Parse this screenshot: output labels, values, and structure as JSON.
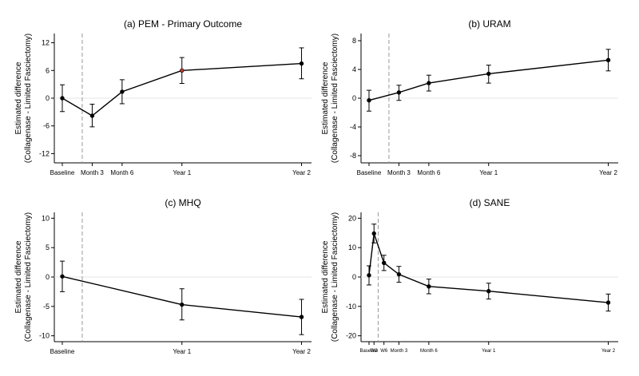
{
  "chart_data": [
    {
      "type": "line",
      "title": "(a) PEM - Primary Outcome",
      "ylabel_line1": "Estimated difference",
      "ylabel_line2": "(Collagenase - Limited Fasciectomy)",
      "ylim": [
        -14,
        14
      ],
      "yticks": [
        12,
        6,
        0,
        -6,
        -12
      ],
      "ytick_labels": [
        "12",
        "6",
        "0",
        "-6",
        "-12"
      ],
      "xlim": [
        -0.8,
        25
      ],
      "vline_x": 2,
      "grid": "zero-line only",
      "series": [
        {
          "x": [
            0,
            3,
            6,
            12,
            24
          ],
          "labels": [
            "Baseline",
            "Month 3",
            "Month 6",
            "Year 1",
            "Year 2"
          ],
          "y": [
            0,
            -3.8,
            1.4,
            6.0,
            7.5
          ],
          "lower": [
            -2.9,
            -6.2,
            -1.2,
            3.2,
            4.2
          ],
          "upper": [
            2.9,
            -1.3,
            4.0,
            8.8,
            10.9
          ]
        }
      ],
      "highlight_point_index": 3,
      "highlight_color": "#c0392b"
    },
    {
      "type": "line",
      "title": "(b) URAM",
      "ylabel_line1": "Estimated difference",
      "ylabel_line2": "(Collagenase - Limited Fasciectomy)",
      "ylim": [
        -9,
        9
      ],
      "yticks": [
        8,
        4,
        0,
        -4,
        -8
      ],
      "ytick_labels": [
        "8",
        "4",
        "0",
        "-4",
        "-8"
      ],
      "xlim": [
        -0.8,
        25
      ],
      "vline_x": 2,
      "grid": "zero-line only",
      "series": [
        {
          "x": [
            0,
            3,
            6,
            12,
            24
          ],
          "labels": [
            "Baseline",
            "Month 3",
            "Month 6",
            "Year 1",
            "Year 2"
          ],
          "y": [
            -0.3,
            0.8,
            2.1,
            3.4,
            5.3
          ],
          "lower": [
            -1.8,
            -0.3,
            1.0,
            2.1,
            3.8
          ],
          "upper": [
            1.1,
            1.8,
            3.2,
            4.6,
            6.8
          ]
        }
      ]
    },
    {
      "type": "line",
      "title": "(c) MHQ",
      "ylabel_line1": "Estimated difference",
      "ylabel_line2": "(Collagenase - Limited Fasciectomy)",
      "ylim": [
        -11,
        11
      ],
      "yticks": [
        10,
        5,
        0,
        -5,
        -10
      ],
      "ytick_labels": [
        "10",
        "5",
        "0",
        "-5",
        "-10"
      ],
      "xlim": [
        -0.8,
        25
      ],
      "vline_x": 2,
      "grid": "zero-line only",
      "series": [
        {
          "x": [
            0,
            12,
            24
          ],
          "labels": [
            "Baseline",
            "Year 1",
            "Year 2"
          ],
          "y": [
            0.1,
            -4.7,
            -6.8
          ],
          "lower": [
            -2.5,
            -7.3,
            -9.8
          ],
          "upper": [
            2.7,
            -2.0,
            -3.8
          ]
        }
      ]
    },
    {
      "type": "line",
      "title": "(d) SANE",
      "ylabel_line1": "Estimated difference",
      "ylabel_line2": "(Collagenase - Limited Fasciectomy)",
      "ylim": [
        -22,
        22
      ],
      "yticks": [
        20,
        10,
        0,
        -10,
        -20
      ],
      "ytick_labels": [
        "20",
        "10",
        "0",
        "-10",
        "-20"
      ],
      "xlim": [
        -0.8,
        25
      ],
      "vline_x": 0.92,
      "grid": "zero-line only",
      "series": [
        {
          "x": [
            0,
            0.5,
            1.5,
            3,
            6,
            12,
            24
          ],
          "labels": [
            "Baseline",
            "W2",
            "W6",
            "Month 3",
            "Month 6",
            "Year 1",
            "Year 2"
          ],
          "y": [
            0.6,
            14.8,
            4.8,
            0.9,
            -3.2,
            -4.8,
            -8.7
          ],
          "lower": [
            -2.7,
            11.6,
            2.2,
            -1.8,
            -5.7,
            -7.5,
            -11.6
          ],
          "upper": [
            3.8,
            18.0,
            7.4,
            3.6,
            -0.7,
            -2.1,
            -5.8
          ]
        }
      ],
      "small_tick_labels": true
    }
  ]
}
